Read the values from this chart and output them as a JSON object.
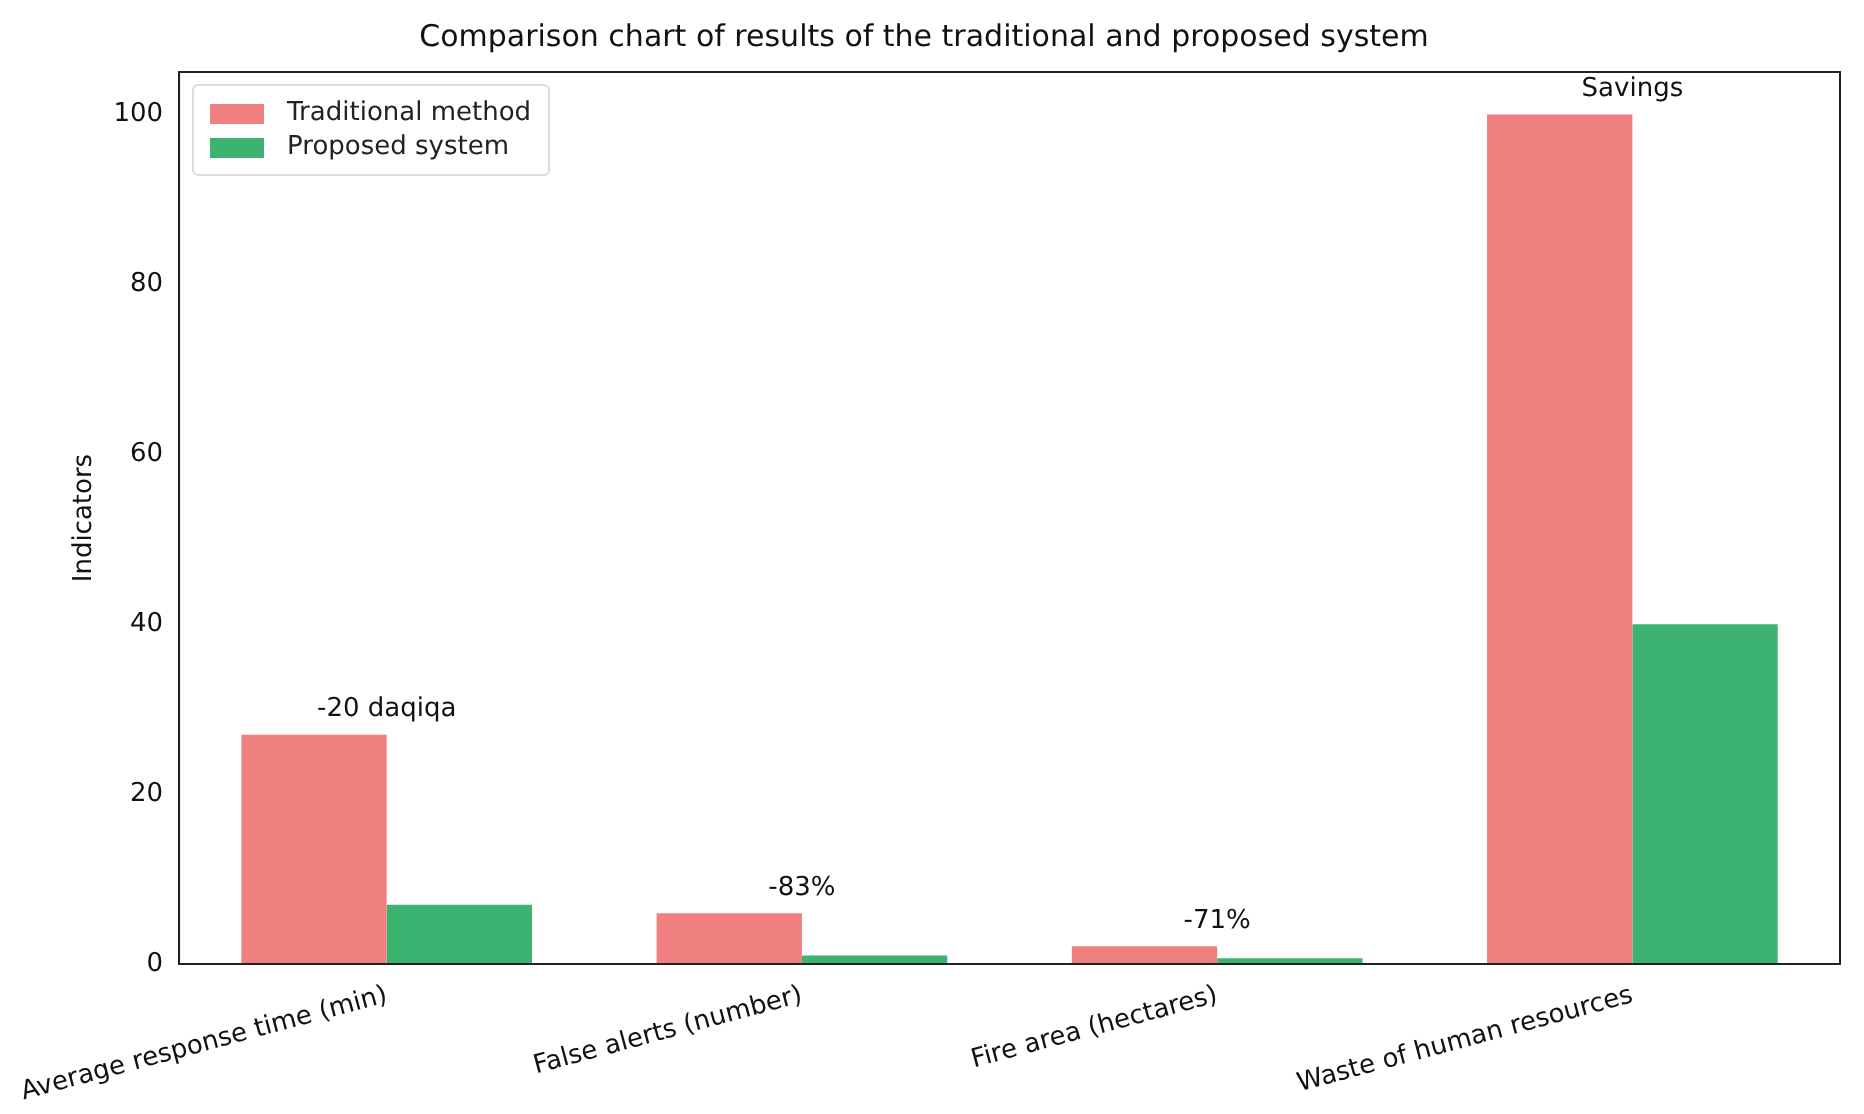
{
  "chart_data": {
    "type": "bar",
    "title": "Comparison chart of results of the traditional and proposed system",
    "ylabel": "Indicators",
    "categories": [
      "Average response time (min)",
      "False alerts (number)",
      "Fire area (hectares)",
      "Waste of human resources"
    ],
    "series": [
      {
        "name": "Traditional method",
        "color": "#f08080",
        "values": [
          27,
          6,
          2.1,
          100
        ]
      },
      {
        "name": "Proposed system",
        "color": "#3cb371",
        "values": [
          7,
          1,
          0.7,
          40
        ]
      }
    ],
    "ylim": [
      0,
      105
    ],
    "yticks": [
      0,
      20,
      40,
      60,
      80,
      100
    ],
    "grid": false,
    "legend": "top left",
    "annotations": [
      "-20 daqiqa",
      "-83%",
      "-71%",
      "Savings"
    ]
  }
}
